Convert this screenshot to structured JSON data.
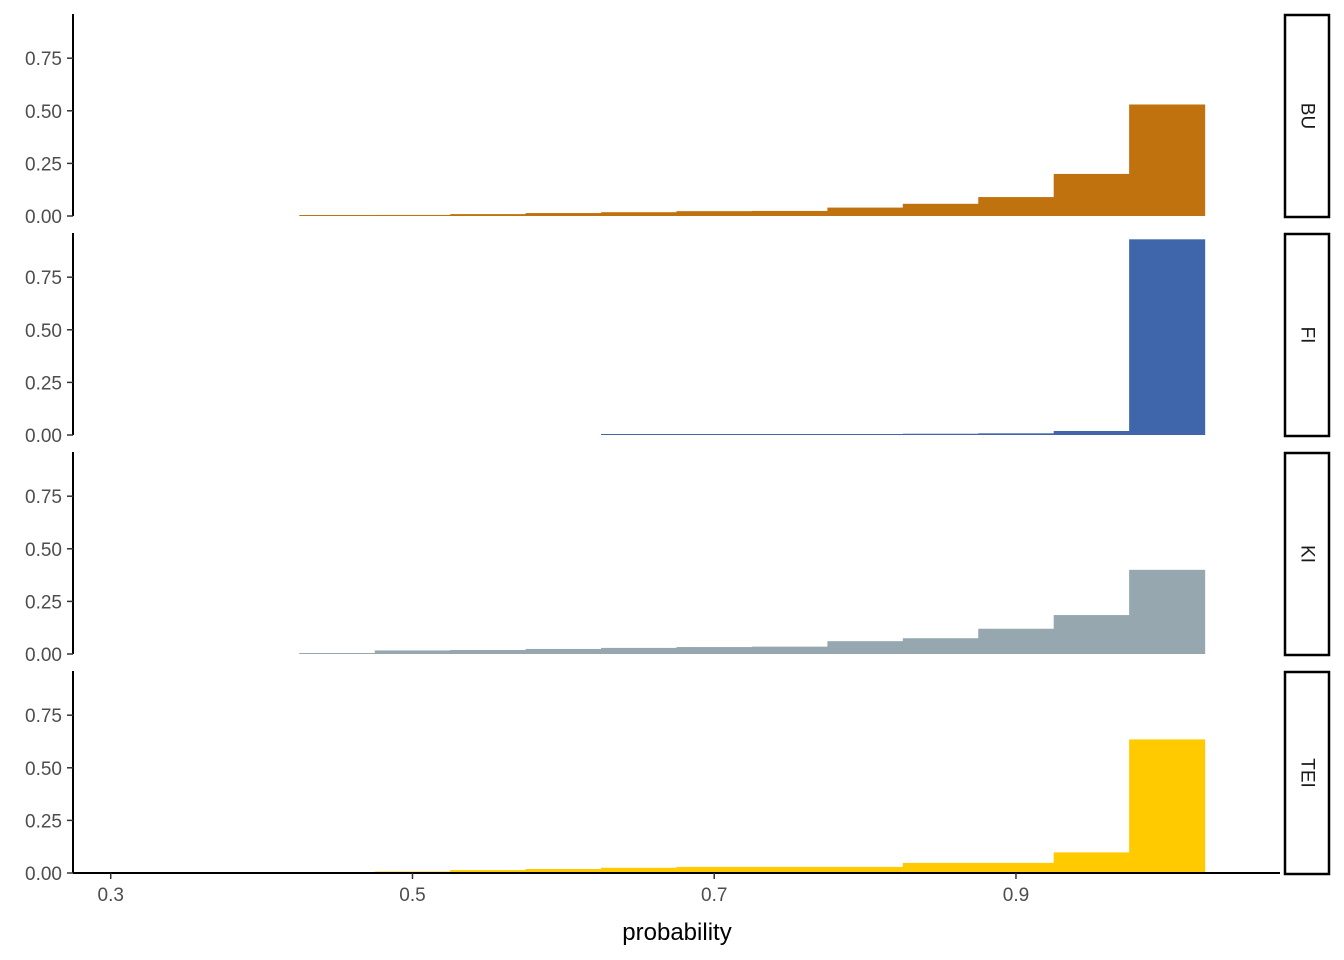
{
  "chart_data": {
    "type": "bar",
    "xlabel": "probability",
    "ylabel": "",
    "xlim": [
      0.275,
      1.075
    ],
    "ylim": [
      0,
      0.96
    ],
    "x_ticks": [
      "0.3",
      "0.5",
      "0.7",
      "0.9"
    ],
    "y_ticks": [
      "0.00",
      "0.25",
      "0.50",
      "0.75"
    ],
    "bins": [
      0.45,
      0.5,
      0.55,
      0.6,
      0.65,
      0.7,
      0.75,
      0.8,
      0.85,
      0.9,
      0.95,
      1.0
    ],
    "bin_width": 0.05,
    "grid": false,
    "legend": "none",
    "panels": [
      {
        "name": "BU",
        "color": "#C0720F",
        "values": [
          0.003,
          0.005,
          0.009,
          0.014,
          0.018,
          0.023,
          0.024,
          0.04,
          0.058,
          0.09,
          0.2,
          0.53
        ]
      },
      {
        "name": "FI",
        "color": "#3F66AA",
        "values": [
          0,
          0,
          0,
          0,
          0.003,
          0.003,
          0.003,
          0.004,
          0.006,
          0.008,
          0.019,
          0.93
        ]
      },
      {
        "name": "KI",
        "color": "#97A7B0",
        "values": [
          0.003,
          0.017,
          0.019,
          0.024,
          0.029,
          0.033,
          0.035,
          0.061,
          0.075,
          0.12,
          0.185,
          0.4
        ]
      },
      {
        "name": "TEI",
        "color": "#FFCB00",
        "values": [
          0,
          0.007,
          0.014,
          0.019,
          0.025,
          0.029,
          0.029,
          0.029,
          0.048,
          0.048,
          0.098,
          0.635
        ]
      }
    ]
  }
}
